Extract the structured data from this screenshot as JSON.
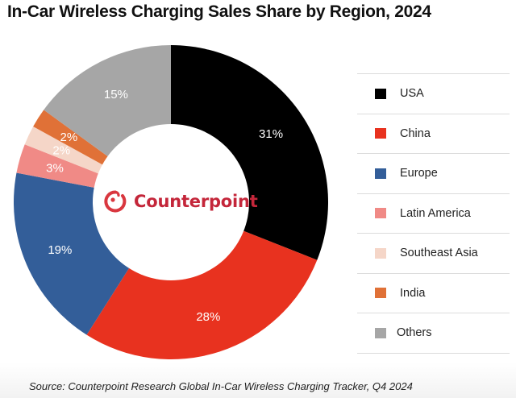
{
  "chart_data": {
    "type": "pie",
    "subtype": "donut",
    "title": "In-Car Wireless Charging Sales Share by Region, 2024",
    "unit": "%",
    "start": "12 o'clock",
    "direction": "clockwise",
    "categories": [
      "USA",
      "China",
      "Europe",
      "Latin America",
      "Southeast Asia",
      "India",
      "Others"
    ],
    "values": [
      31,
      28,
      19,
      3,
      2,
      2,
      15
    ],
    "labels": [
      "31%",
      "28%",
      "19%",
      "3%",
      "2%",
      "2%",
      "15%"
    ],
    "colors": [
      "#000000",
      "#e8321f",
      "#335e99",
      "#f08a86",
      "#f5d6c8",
      "#e07137",
      "#a6a6a6"
    ],
    "legend": {
      "placement": "right",
      "entries": [
        "USA",
        "China",
        "Europe",
        "Latin America",
        "Southeast Asia",
        "India",
        "Others"
      ]
    },
    "center_logo": "Counterpoint",
    "source": "Source: Counterpoint Research Global In-Car Wireless Charging Tracker, Q4 2024"
  },
  "logo": {
    "text": "Counterpoint",
    "color": "#c4263a"
  }
}
